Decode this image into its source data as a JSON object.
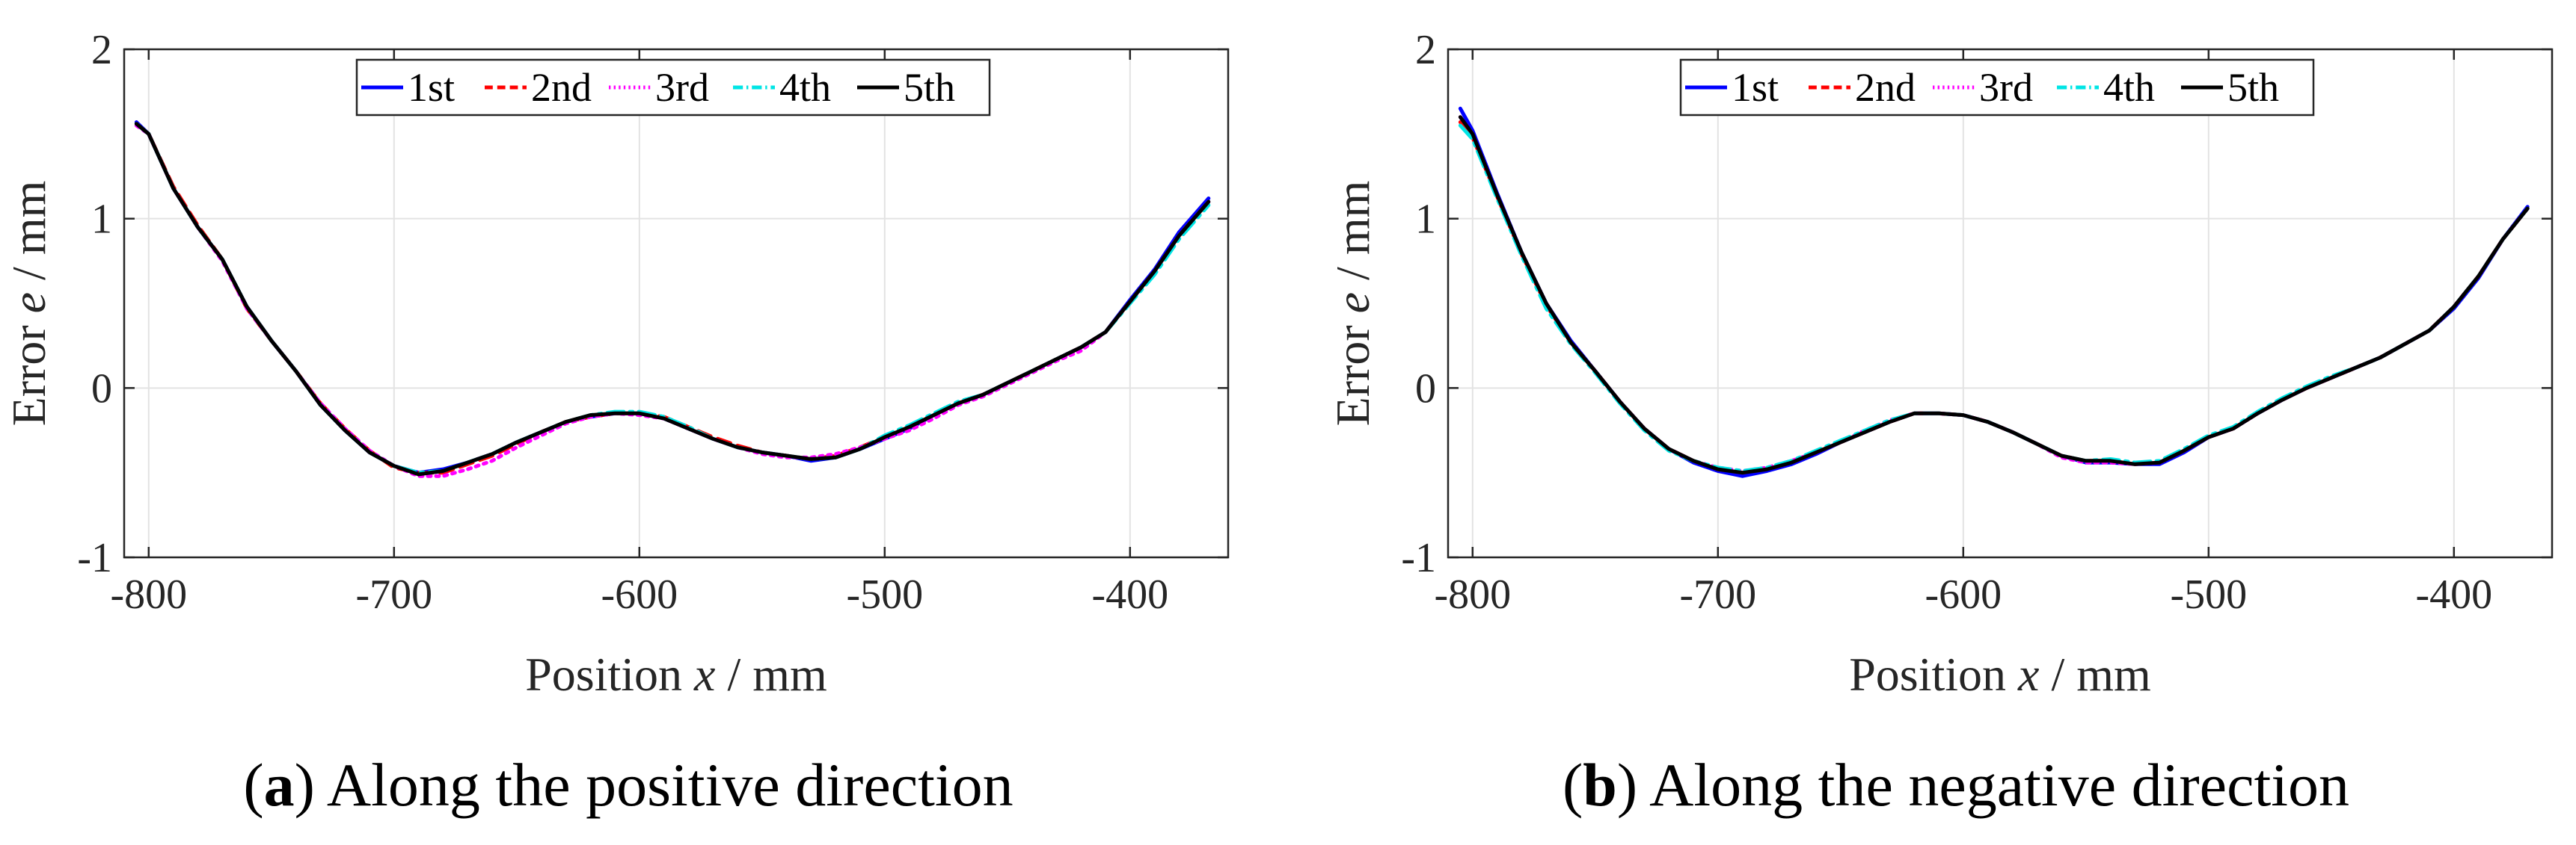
{
  "chart_data": [
    {
      "type": "line",
      "caption_letter": "a",
      "caption_text": ") Along the positive direction",
      "xlabel_main": "Position ",
      "xlabel_var": "x",
      "xlabel_unit": " / mm",
      "ylabel_main": "Error ",
      "ylabel_var": "e",
      "ylabel_unit": " / mm",
      "xlim": [
        -810,
        -360
      ],
      "ylim": [
        -1,
        2
      ],
      "xticks": [
        -800,
        -700,
        -600,
        -500,
        -400
      ],
      "xtick_labels": [
        "-800",
        "-700",
        "-600",
        "-500",
        "-400"
      ],
      "yticks": [
        -1,
        0,
        1,
        2
      ],
      "ytick_labels": [
        "-1",
        "0",
        "1",
        "2"
      ],
      "legend": [
        "1st",
        "2nd",
        "3rd",
        "4th",
        "5th"
      ],
      "series_colors": [
        "#0000ff",
        "#ff0000",
        "#ff00ff",
        "#00e5e5",
        "#000000"
      ],
      "x": [
        -805,
        -800,
        -790,
        -780,
        -770,
        -760,
        -750,
        -740,
        -730,
        -720,
        -710,
        -700,
        -690,
        -680,
        -670,
        -660,
        -650,
        -640,
        -630,
        -620,
        -610,
        -600,
        -590,
        -580,
        -570,
        -560,
        -550,
        -540,
        -530,
        -520,
        -510,
        -500,
        -490,
        -480,
        -470,
        -460,
        -450,
        -440,
        -430,
        -420,
        -410,
        -400,
        -390,
        -380,
        -368
      ],
      "series": [
        {
          "name": "1st",
          "values": [
            1.57,
            1.5,
            1.18,
            0.95,
            0.76,
            0.48,
            0.28,
            0.1,
            -0.1,
            -0.25,
            -0.38,
            -0.46,
            -0.5,
            -0.48,
            -0.44,
            -0.39,
            -0.32,
            -0.26,
            -0.2,
            -0.17,
            -0.15,
            -0.15,
            -0.18,
            -0.24,
            -0.3,
            -0.35,
            -0.38,
            -0.4,
            -0.43,
            -0.41,
            -0.36,
            -0.3,
            -0.24,
            -0.16,
            -0.09,
            -0.04,
            0.03,
            0.1,
            0.17,
            0.24,
            0.33,
            0.52,
            0.7,
            0.92,
            1.12
          ]
        },
        {
          "name": "2nd",
          "values": [
            1.56,
            1.5,
            1.19,
            0.96,
            0.76,
            0.47,
            0.28,
            0.1,
            -0.09,
            -0.24,
            -0.37,
            -0.47,
            -0.5,
            -0.5,
            -0.45,
            -0.4,
            -0.33,
            -0.26,
            -0.2,
            -0.17,
            -0.15,
            -0.15,
            -0.17,
            -0.23,
            -0.29,
            -0.34,
            -0.38,
            -0.4,
            -0.42,
            -0.4,
            -0.35,
            -0.29,
            -0.23,
            -0.16,
            -0.09,
            -0.04,
            0.03,
            0.1,
            0.17,
            0.24,
            0.33,
            0.51,
            0.69,
            0.9,
            1.1
          ]
        },
        {
          "name": "3rd",
          "values": [
            1.55,
            1.5,
            1.18,
            0.95,
            0.75,
            0.47,
            0.28,
            0.1,
            -0.09,
            -0.24,
            -0.37,
            -0.46,
            -0.52,
            -0.52,
            -0.48,
            -0.43,
            -0.35,
            -0.28,
            -0.21,
            -0.17,
            -0.15,
            -0.16,
            -0.18,
            -0.24,
            -0.3,
            -0.35,
            -0.39,
            -0.41,
            -0.41,
            -0.39,
            -0.35,
            -0.3,
            -0.25,
            -0.18,
            -0.1,
            -0.05,
            0.02,
            0.09,
            0.16,
            0.22,
            0.33,
            0.51,
            0.69,
            0.9,
            1.1
          ]
        },
        {
          "name": "4th",
          "values": [
            1.56,
            1.5,
            1.18,
            0.95,
            0.76,
            0.48,
            0.28,
            0.1,
            -0.1,
            -0.25,
            -0.38,
            -0.46,
            -0.5,
            -0.49,
            -0.44,
            -0.39,
            -0.32,
            -0.26,
            -0.2,
            -0.16,
            -0.14,
            -0.14,
            -0.17,
            -0.23,
            -0.3,
            -0.35,
            -0.38,
            -0.4,
            -0.42,
            -0.41,
            -0.36,
            -0.28,
            -0.22,
            -0.15,
            -0.08,
            -0.04,
            0.03,
            0.1,
            0.17,
            0.24,
            0.33,
            0.5,
            0.67,
            0.88,
            1.08
          ]
        },
        {
          "name": "5th",
          "values": [
            1.56,
            1.5,
            1.18,
            0.95,
            0.76,
            0.48,
            0.28,
            0.1,
            -0.1,
            -0.25,
            -0.38,
            -0.46,
            -0.51,
            -0.49,
            -0.44,
            -0.39,
            -0.32,
            -0.26,
            -0.2,
            -0.16,
            -0.15,
            -0.15,
            -0.18,
            -0.24,
            -0.3,
            -0.35,
            -0.38,
            -0.4,
            -0.42,
            -0.41,
            -0.36,
            -0.29,
            -0.23,
            -0.16,
            -0.09,
            -0.04,
            0.03,
            0.1,
            0.17,
            0.24,
            0.33,
            0.51,
            0.69,
            0.9,
            1.1
          ]
        }
      ]
    },
    {
      "type": "line",
      "caption_letter": "b",
      "caption_text": ") Along the negative direction",
      "xlabel_main": "Position ",
      "xlabel_var": "x",
      "xlabel_unit": " / mm",
      "ylabel_main": "Error ",
      "ylabel_var": "e",
      "ylabel_unit": " / mm",
      "xlim": [
        -810,
        -360
      ],
      "ylim": [
        -1,
        2
      ],
      "xticks": [
        -800,
        -700,
        -600,
        -500,
        -400
      ],
      "xtick_labels": [
        "-800",
        "-700",
        "-600",
        "-500",
        "-400"
      ],
      "yticks": [
        -1,
        0,
        1,
        2
      ],
      "ytick_labels": [
        "-1",
        "0",
        "1",
        "2"
      ],
      "legend": [
        "1st",
        "2nd",
        "3rd",
        "4th",
        "5th"
      ],
      "series_colors": [
        "#0000ff",
        "#ff0000",
        "#ff00ff",
        "#00e5e5",
        "#000000"
      ],
      "x": [
        -805,
        -800,
        -790,
        -780,
        -770,
        -760,
        -750,
        -740,
        -730,
        -720,
        -710,
        -700,
        -690,
        -680,
        -670,
        -660,
        -650,
        -640,
        -630,
        -620,
        -610,
        -600,
        -590,
        -580,
        -570,
        -560,
        -550,
        -540,
        -530,
        -520,
        -510,
        -500,
        -490,
        -480,
        -470,
        -460,
        -450,
        -440,
        -430,
        -420,
        -410,
        -400,
        -390,
        -380,
        -370
      ],
      "series": [
        {
          "name": "1st",
          "values": [
            1.65,
            1.52,
            1.15,
            0.8,
            0.5,
            0.28,
            0.1,
            -0.08,
            -0.24,
            -0.36,
            -0.44,
            -0.49,
            -0.52,
            -0.49,
            -0.45,
            -0.39,
            -0.32,
            -0.26,
            -0.2,
            -0.15,
            -0.15,
            -0.16,
            -0.2,
            -0.26,
            -0.33,
            -0.4,
            -0.44,
            -0.44,
            -0.45,
            -0.45,
            -0.38,
            -0.29,
            -0.24,
            -0.15,
            -0.07,
            0.0,
            0.06,
            0.12,
            0.18,
            0.26,
            0.34,
            0.47,
            0.65,
            0.88,
            1.07
          ]
        },
        {
          "name": "2nd",
          "values": [
            1.57,
            1.48,
            1.13,
            0.79,
            0.49,
            0.27,
            0.1,
            -0.08,
            -0.24,
            -0.36,
            -0.43,
            -0.48,
            -0.5,
            -0.48,
            -0.44,
            -0.38,
            -0.32,
            -0.26,
            -0.2,
            -0.15,
            -0.15,
            -0.16,
            -0.2,
            -0.26,
            -0.33,
            -0.4,
            -0.43,
            -0.43,
            -0.45,
            -0.44,
            -0.37,
            -0.29,
            -0.24,
            -0.15,
            -0.07,
            0.0,
            0.06,
            0.12,
            0.18,
            0.26,
            0.34,
            0.48,
            0.66,
            0.88,
            1.06
          ]
        },
        {
          "name": "3rd",
          "values": [
            1.6,
            1.5,
            1.14,
            0.8,
            0.5,
            0.27,
            0.1,
            -0.08,
            -0.24,
            -0.36,
            -0.43,
            -0.47,
            -0.49,
            -0.47,
            -0.43,
            -0.38,
            -0.32,
            -0.25,
            -0.19,
            -0.15,
            -0.15,
            -0.16,
            -0.2,
            -0.26,
            -0.33,
            -0.41,
            -0.44,
            -0.44,
            -0.45,
            -0.44,
            -0.37,
            -0.29,
            -0.24,
            -0.15,
            -0.07,
            0.0,
            0.06,
            0.12,
            0.18,
            0.26,
            0.34,
            0.48,
            0.66,
            0.88,
            1.06
          ]
        },
        {
          "name": "4th",
          "values": [
            1.55,
            1.47,
            1.12,
            0.78,
            0.47,
            0.26,
            0.09,
            -0.09,
            -0.25,
            -0.37,
            -0.43,
            -0.47,
            -0.49,
            -0.47,
            -0.43,
            -0.37,
            -0.31,
            -0.25,
            -0.19,
            -0.15,
            -0.15,
            -0.16,
            -0.2,
            -0.26,
            -0.33,
            -0.4,
            -0.43,
            -0.42,
            -0.44,
            -0.43,
            -0.36,
            -0.28,
            -0.23,
            -0.14,
            -0.06,
            0.01,
            0.07,
            0.12,
            0.18,
            0.26,
            0.34,
            0.48,
            0.66,
            0.88,
            1.06
          ]
        },
        {
          "name": "5th",
          "values": [
            1.6,
            1.5,
            1.14,
            0.8,
            0.5,
            0.27,
            0.1,
            -0.08,
            -0.24,
            -0.36,
            -0.43,
            -0.48,
            -0.5,
            -0.48,
            -0.44,
            -0.38,
            -0.32,
            -0.26,
            -0.2,
            -0.15,
            -0.15,
            -0.16,
            -0.2,
            -0.26,
            -0.33,
            -0.4,
            -0.43,
            -0.43,
            -0.45,
            -0.44,
            -0.37,
            -0.29,
            -0.24,
            -0.15,
            -0.07,
            0.0,
            0.06,
            0.12,
            0.18,
            0.26,
            0.34,
            0.48,
            0.66,
            0.88,
            1.06
          ]
        }
      ]
    }
  ]
}
